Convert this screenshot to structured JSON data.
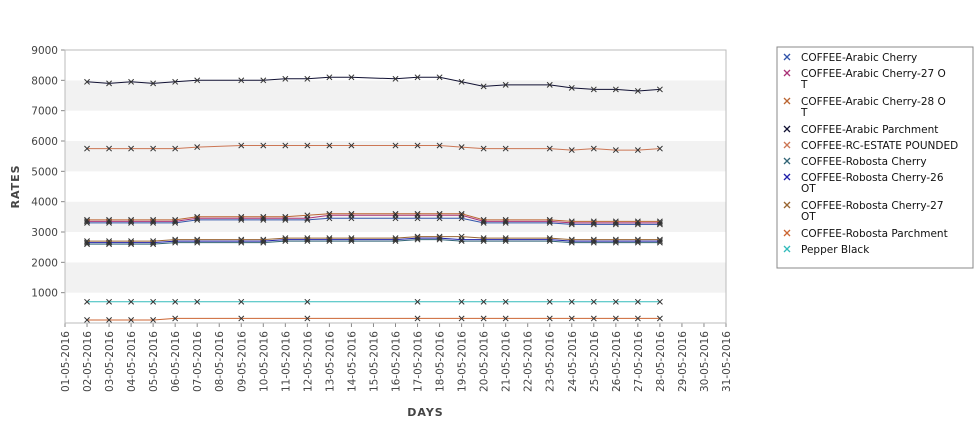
{
  "chart_data": {
    "type": "line",
    "title": "",
    "xlabel": "DAYS",
    "ylabel": "RATES",
    "ylim": [
      0,
      9000
    ],
    "yticks": [
      1000,
      2000,
      3000,
      4000,
      5000,
      6000,
      7000,
      8000,
      9000
    ],
    "grid": "alternating horizontal bands",
    "legend_position": "right",
    "categories": [
      "01-05-2016",
      "02-05-2016",
      "03-05-2016",
      "04-05-2016",
      "05-05-2016",
      "06-05-2016",
      "07-05-2016",
      "08-05-2016",
      "09-05-2016",
      "10-05-2016",
      "11-05-2016",
      "12-05-2016",
      "13-05-2016",
      "14-05-2016",
      "15-05-2016",
      "16-05-2016",
      "17-05-2016",
      "18-05-2016",
      "19-05-2016",
      "20-05-2016",
      "21-05-2016",
      "22-05-2016",
      "23-05-2016",
      "24-05-2016",
      "25-05-2016",
      "26-05-2016",
      "27-05-2016",
      "28-05-2016",
      "29-05-2016",
      "30-05-2016",
      "31-05-2016"
    ],
    "series": [
      {
        "name": [
          "COFFEE-Arabic Cherry"
        ],
        "color": "#3355aa",
        "values": [
          null,
          3300,
          3300,
          3300,
          3300,
          3300,
          3400,
          null,
          3400,
          3400,
          3400,
          3400,
          3450,
          3450,
          null,
          3450,
          3450,
          3450,
          3450,
          3300,
          3300,
          null,
          3300,
          3250,
          3250,
          3250,
          3250,
          3250,
          null,
          null,
          null
        ]
      },
      {
        "name": [
          "COFFEE-Arabic Cherry-27 O",
          "T"
        ],
        "color": "#aa3377",
        "values": [
          null,
          3350,
          3350,
          3350,
          3350,
          3350,
          3450,
          null,
          3450,
          3450,
          3450,
          3450,
          3550,
          3550,
          null,
          3550,
          3550,
          3550,
          3550,
          3350,
          3350,
          null,
          3350,
          3300,
          3300,
          3300,
          3300,
          3300,
          null,
          null,
          null
        ]
      },
      {
        "name": [
          "COFFEE-Arabic Cherry-28 O",
          "T"
        ],
        "color": "#bb6633",
        "values": [
          null,
          3400,
          3400,
          3400,
          3400,
          3400,
          3500,
          null,
          3500,
          3500,
          3500,
          3550,
          3600,
          3600,
          null,
          3600,
          3600,
          3600,
          3600,
          3400,
          3400,
          null,
          3400,
          3350,
          3350,
          3350,
          3350,
          3350,
          null,
          null,
          null
        ]
      },
      {
        "name": [
          "COFFEE-Arabic Parchment"
        ],
        "color": "#111133",
        "values": [
          null,
          7950,
          7900,
          7950,
          7900,
          7950,
          8000,
          null,
          8000,
          8000,
          8050,
          8050,
          8100,
          8100,
          null,
          8050,
          8100,
          8100,
          7950,
          7800,
          7850,
          null,
          7850,
          7750,
          7700,
          7700,
          7650,
          7700,
          null,
          null,
          null
        ]
      },
      {
        "name": [
          "COFFEE-RC-ESTATE POUNDED"
        ],
        "color": "#cc7755",
        "values": [
          null,
          5750,
          5750,
          5750,
          5750,
          5750,
          5800,
          null,
          5850,
          5850,
          5850,
          5850,
          5850,
          5850,
          null,
          5850,
          5850,
          5850,
          5800,
          5750,
          5750,
          null,
          5750,
          5700,
          5750,
          5700,
          5700,
          5750,
          null,
          null,
          null
        ]
      },
      {
        "name": [
          "COFFEE-Robosta Cherry"
        ],
        "color": "#336677",
        "values": [
          null,
          2600,
          2600,
          2600,
          2600,
          2650,
          2650,
          null,
          2650,
          2650,
          2700,
          2700,
          2700,
          2700,
          null,
          2700,
          2750,
          2750,
          2700,
          2700,
          2700,
          null,
          2700,
          2650,
          2650,
          2650,
          2650,
          2650,
          null,
          null,
          null
        ]
      },
      {
        "name": [
          "COFFEE-Robosta Cherry-26",
          "OT"
        ],
        "color": "#2222aa",
        "values": [
          null,
          2650,
          2650,
          2650,
          2650,
          2700,
          2700,
          null,
          2700,
          2700,
          2750,
          2750,
          2750,
          2750,
          null,
          2750,
          2800,
          2800,
          2750,
          2750,
          2750,
          null,
          2750,
          2700,
          2700,
          2700,
          2700,
          2700,
          null,
          null,
          null
        ]
      },
      {
        "name": [
          "COFFEE-Robosta Cherry-27",
          "OT"
        ],
        "color": "#996633",
        "values": [
          null,
          2700,
          2700,
          2700,
          2700,
          2750,
          2750,
          null,
          2750,
          2750,
          2800,
          2800,
          2800,
          2800,
          null,
          2800,
          2850,
          2850,
          2850,
          2800,
          2800,
          null,
          2800,
          2750,
          2750,
          2750,
          2750,
          2750,
          null,
          null,
          null
        ]
      },
      {
        "name": [
          "COFFEE-Robosta Parchment"
        ],
        "color": "#cc6633",
        "values": [
          null,
          100,
          100,
          100,
          100,
          150,
          null,
          null,
          150,
          null,
          null,
          150,
          null,
          null,
          null,
          null,
          150,
          null,
          150,
          150,
          150,
          null,
          150,
          150,
          150,
          150,
          150,
          150,
          null,
          null,
          null
        ]
      },
      {
        "name": [
          "Pepper Black"
        ],
        "color": "#33bbbb",
        "values": [
          null,
          700,
          700,
          700,
          700,
          700,
          700,
          null,
          700,
          null,
          null,
          700,
          null,
          null,
          null,
          null,
          700,
          null,
          700,
          700,
          700,
          null,
          700,
          700,
          700,
          700,
          700,
          700,
          null,
          null,
          null
        ]
      }
    ]
  }
}
